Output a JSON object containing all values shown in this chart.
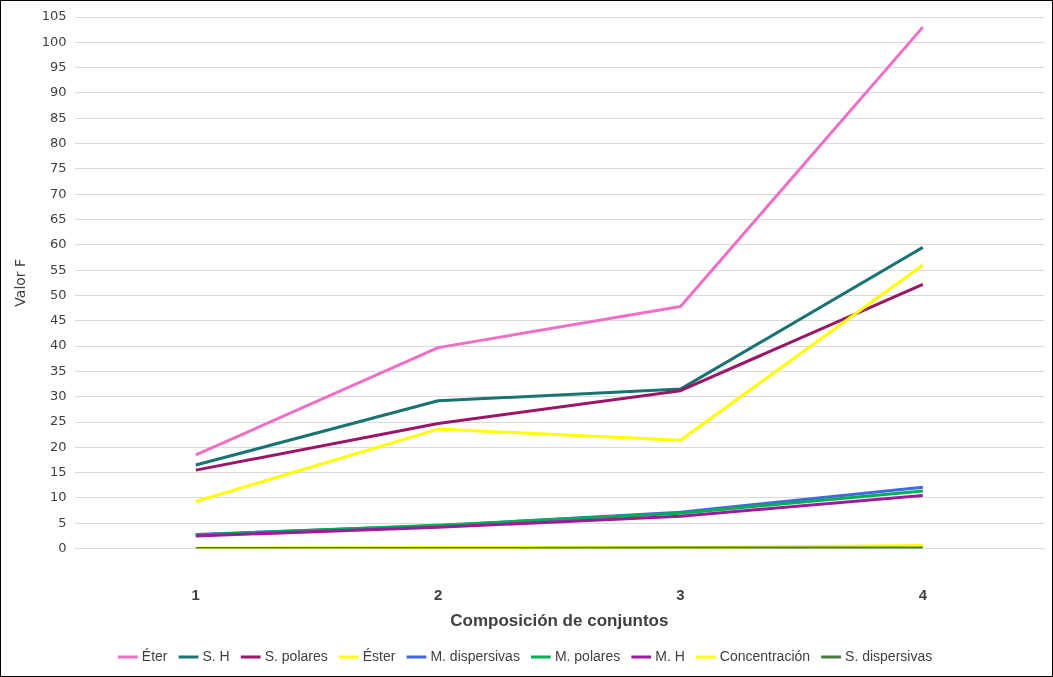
{
  "chart_data": {
    "type": "line",
    "xlabel": "Composición de conjuntos",
    "ylabel": "Valor F",
    "categories": [
      "1",
      "2",
      "3",
      "4"
    ],
    "ylim": [
      0,
      105
    ],
    "yticks": [
      0,
      5,
      10,
      15,
      20,
      25,
      30,
      35,
      40,
      45,
      50,
      55,
      60,
      65,
      70,
      75,
      80,
      85,
      90,
      95,
      100,
      105
    ],
    "grid": "y",
    "legend": "bottom",
    "marker": "none",
    "line_style": "solid",
    "series": [
      {
        "name": "Éter",
        "color": "#f06fc6",
        "values": [
          18.5,
          39.7,
          47.8,
          103
        ]
      },
      {
        "name": "S. H",
        "color": "#1a7373",
        "values": [
          16.5,
          29.2,
          31.5,
          59.5
        ]
      },
      {
        "name": "S. polares",
        "color": "#9b1568",
        "values": [
          15.5,
          24.7,
          31.2,
          52.2
        ]
      },
      {
        "name": "Éster",
        "color": "#ffff00",
        "values": [
          9.3,
          23.6,
          21.4,
          56
        ]
      },
      {
        "name": "M. dispersivas",
        "color": "#4169e1",
        "values": [
          2.8,
          4.5,
          7.2,
          12.1
        ]
      },
      {
        "name": "M. polares",
        "color": "#00b050",
        "values": [
          2.7,
          4.6,
          7.0,
          11.4
        ]
      },
      {
        "name": "M. H",
        "color": "#a0189e",
        "values": [
          2.5,
          4.2,
          6.4,
          10.5
        ]
      },
      {
        "name": "Concentración",
        "color": "#ffff00",
        "values": [
          0.1,
          0.2,
          0.2,
          0.6
        ]
      },
      {
        "name": "S. dispersivas",
        "color": "#4a7c3b",
        "values": [
          0,
          0,
          0.1,
          0.1
        ]
      }
    ]
  }
}
